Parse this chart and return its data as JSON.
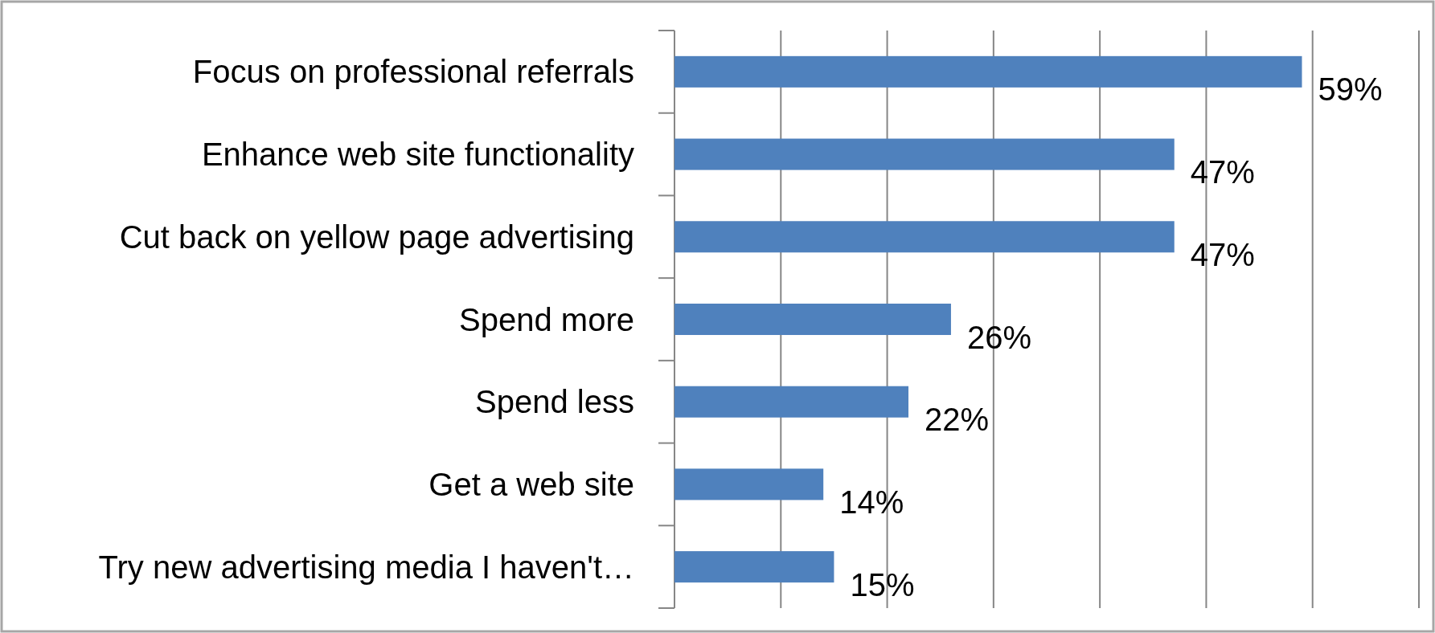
{
  "chart_data": {
    "type": "bar",
    "orientation": "horizontal",
    "categories": [
      "Focus on professional referrals",
      "Enhance web site functionality",
      "Cut back on yellow page advertising",
      "Spend more",
      "Spend less",
      "Get a web site",
      "Try new advertising media I haven't…"
    ],
    "values": [
      59,
      47,
      47,
      26,
      22,
      14,
      15
    ],
    "color": "#4f81bd",
    "xlim": [
      0,
      70
    ],
    "xticks": [
      {
        "value": 0,
        "label": null
      },
      {
        "value": 10,
        "label": null
      },
      {
        "value": 20,
        "label": null
      },
      {
        "value": 30,
        "label": null
      },
      {
        "value": 40,
        "label": null
      },
      {
        "value": 50,
        "label": null
      },
      {
        "value": 60,
        "label": null
      },
      {
        "value": 70,
        "label": null
      }
    ],
    "value_labels": [
      "59%",
      "47%",
      "47%",
      "26%",
      "22%",
      "14%",
      "15%"
    ],
    "grid": "x",
    "tick_labels": "y"
  }
}
